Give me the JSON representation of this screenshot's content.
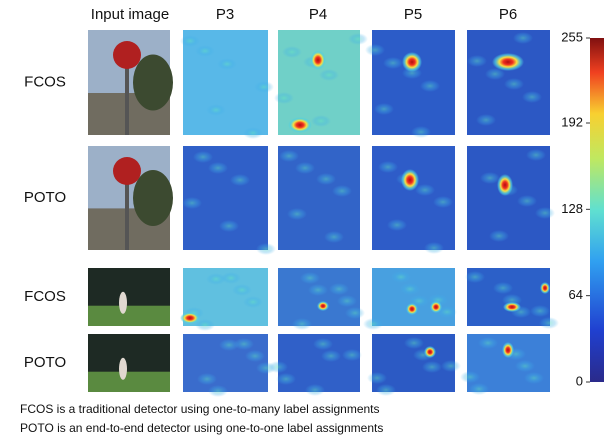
{
  "header": {
    "columns": [
      "Input image",
      "P3",
      "P4",
      "P5",
      "P6"
    ]
  },
  "rows": [
    "FCOS",
    "POTO",
    "FCOS",
    "POTO"
  ],
  "colorbar": {
    "lim": [
      0,
      255
    ],
    "ticks": [
      0,
      64,
      128,
      192,
      255
    ]
  },
  "captions": [
    "FCOS is a traditional detector using one-to-many label assignments",
    "POTO is an end-to-end detector using one-to-one label assignments"
  ]
}
